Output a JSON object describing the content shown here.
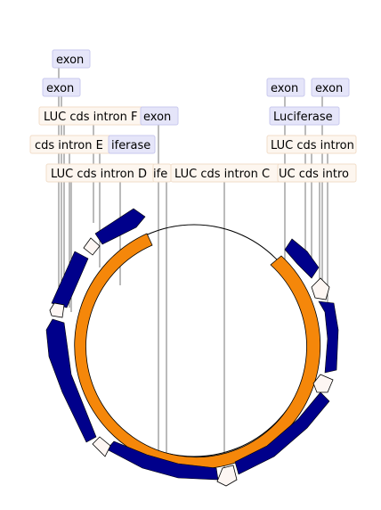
{
  "map": {
    "labels": {
      "exon_1": "exon",
      "exon_2": "exon",
      "exon_3": "exon",
      "exon_4": "exon",
      "exon_5": "exon",
      "intron_f": "LUC cds intron F",
      "intron_e": "cds intron E",
      "intron_d": "LUC cds intron D",
      "intron_c": "LUC cds intron C",
      "intron_right_1": "LUC cds intron",
      "intron_right_2": "UC cds intro",
      "luciferase_1": "iferase",
      "luciferase_2": "Luciferase",
      "luciferase_3": "ife"
    },
    "colors": {
      "exon_fill": "#e5e5f9",
      "intron_fill": "#fdf6ef",
      "backbone_feature": "#f5870a",
      "exon_arrow": "#00008b",
      "intron_arrow": "#fdf6f3"
    }
  }
}
